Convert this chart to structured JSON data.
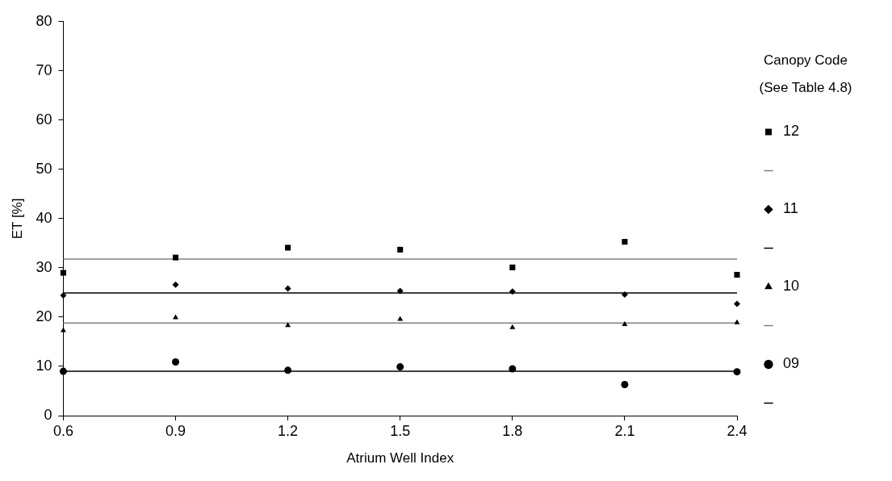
{
  "chart_data": {
    "type": "scatter",
    "xlabel": "Atrium Well Index",
    "ylabel": "ET [%]",
    "legend_title": "Canopy Code\n(See Table 4.8)",
    "legend": "right",
    "grid": false,
    "xlim": [
      0.6,
      2.4
    ],
    "xticks": [
      0.6,
      0.9,
      1.2,
      1.5,
      1.8,
      2.1,
      2.4
    ],
    "ylim": [
      0,
      80
    ],
    "yticks": [
      0,
      10,
      20,
      30,
      40,
      50,
      60,
      70,
      80
    ],
    "x": [
      0.6,
      0.9,
      1.2,
      1.5,
      1.8,
      2.1,
      2.4
    ],
    "series": [
      {
        "name": "12",
        "type": "scatter",
        "marker": "square",
        "color": "#000000",
        "values": [
          29.0,
          32.1,
          34.1,
          33.7,
          30.1,
          35.3,
          28.6
        ]
      },
      {
        "type": "line",
        "marker": "none",
        "color": "#808080",
        "values": [
          31.8,
          31.8,
          31.8,
          31.8,
          31.8,
          31.8,
          31.8
        ]
      },
      {
        "name": "11",
        "type": "scatter",
        "marker": "diamond",
        "color": "#000000",
        "values": [
          24.4,
          26.6,
          25.8,
          25.3,
          25.2,
          24.6,
          22.7
        ]
      },
      {
        "type": "line",
        "marker": "none",
        "color": "#000000",
        "values": [
          24.9,
          24.9,
          24.9,
          24.9,
          24.9,
          24.9,
          24.9
        ]
      },
      {
        "name": "10",
        "type": "scatter",
        "marker": "triangle",
        "color": "#000000",
        "values": [
          17.3,
          19.9,
          18.3,
          19.6,
          17.9,
          18.5,
          18.9
        ]
      },
      {
        "type": "line",
        "marker": "none",
        "color": "#808080",
        "values": [
          18.8,
          18.8,
          18.8,
          18.8,
          18.8,
          18.8,
          18.8
        ]
      },
      {
        "name": "09",
        "type": "scatter",
        "marker": "circle",
        "color": "#000000",
        "values": [
          9.0,
          10.9,
          9.2,
          9.9,
          9.5,
          6.3,
          8.9
        ]
      },
      {
        "type": "line",
        "marker": "none",
        "color": "#000000",
        "values": [
          9.0,
          9.0,
          9.0,
          9.0,
          9.0,
          9.0,
          9.0
        ]
      }
    ]
  }
}
